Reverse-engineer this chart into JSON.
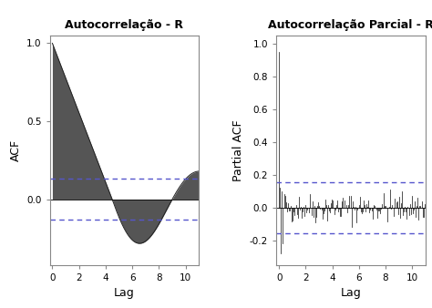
{
  "title_left": "Autocorrelação - R",
  "title_right": "Autocorrelação Parcial - R",
  "ylabel_left": "ACF",
  "ylabel_right": "Partial ACF",
  "xlabel": "Lag",
  "acf_ci": 0.13,
  "pacf_ci": 0.155,
  "acf_ylim": [
    -0.42,
    1.05
  ],
  "pacf_ylim": [
    -0.35,
    1.05
  ],
  "lag_max": 11,
  "fill_color": "#555555",
  "line_color": "#222222",
  "ci_color": "#5555cc",
  "background": "#ffffff",
  "n_pacf_lags": 150,
  "seed": 42
}
